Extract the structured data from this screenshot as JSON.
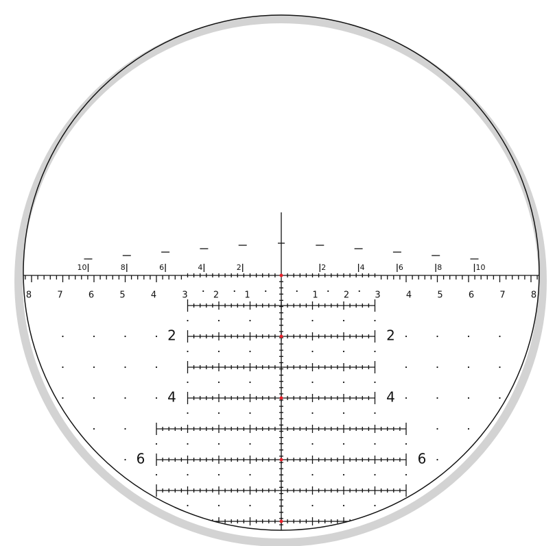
{
  "top_labels_left": [
    "10",
    "8",
    "6",
    "4",
    "2"
  ],
  "top_labels_right": [
    "2",
    "4",
    "6",
    "8",
    "10"
  ],
  "axis_labels_left": [
    "8",
    "7",
    "6",
    "5",
    "4",
    "3",
    "2",
    "1"
  ],
  "axis_labels_right": [
    "1",
    "2",
    "3",
    "4",
    "5",
    "6",
    "7",
    "8"
  ],
  "holdover_labels_left": [
    "2",
    "4",
    "6"
  ],
  "holdover_labels_right": [
    "2",
    "4",
    "6"
  ]
}
